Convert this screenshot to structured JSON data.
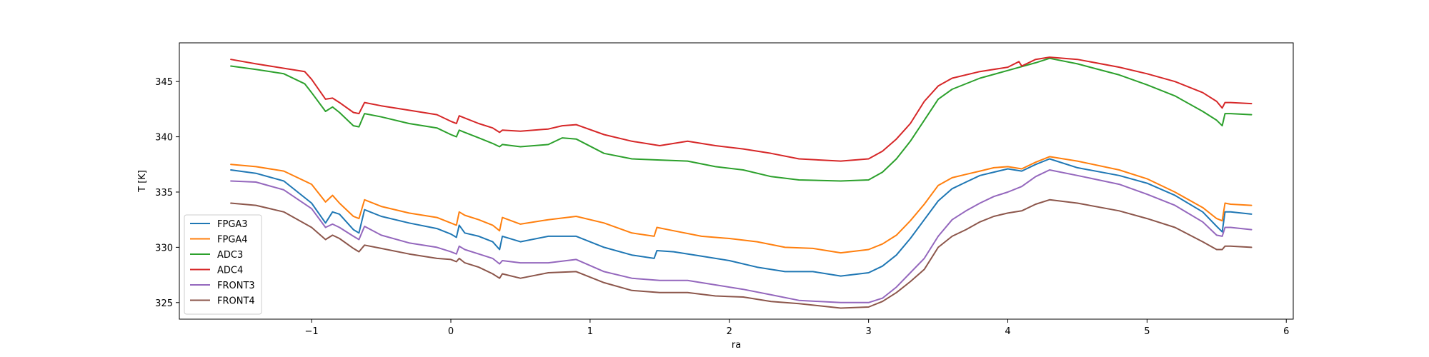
{
  "chart_data": {
    "type": "line",
    "xlabel": "ra",
    "ylabel": "T [K]",
    "xlim": [
      -1.95,
      6.05
    ],
    "ylim": [
      323.5,
      348.5
    ],
    "xticks": [
      -1,
      0,
      1,
      2,
      3,
      4,
      5,
      6
    ],
    "xtick_labels": [
      "−1",
      "0",
      "1",
      "2",
      "3",
      "4",
      "5",
      "6"
    ],
    "yticks": [
      325,
      330,
      335,
      340,
      345
    ],
    "ytick_labels": [
      "325",
      "330",
      "335",
      "340",
      "345"
    ],
    "legend_position": "lower-left",
    "grid": false,
    "series": [
      {
        "name": "FPGA3",
        "color": "#1f77b4",
        "x": [
          -1.58,
          -1.4,
          -1.2,
          -1.0,
          -0.9,
          -0.85,
          -0.8,
          -0.7,
          -0.66,
          -0.62,
          -0.5,
          -0.3,
          -0.1,
          0.0,
          0.04,
          0.06,
          0.1,
          0.2,
          0.3,
          0.35,
          0.37,
          0.5,
          0.7,
          0.9,
          1.1,
          1.3,
          1.46,
          1.48,
          1.6,
          1.8,
          2.0,
          2.2,
          2.4,
          2.6,
          2.8,
          3.0,
          3.1,
          3.2,
          3.3,
          3.4,
          3.5,
          3.6,
          3.7,
          3.8,
          3.9,
          4.0,
          4.1,
          4.2,
          4.3,
          4.5,
          4.8,
          5.0,
          5.2,
          5.4,
          5.5,
          5.54,
          5.56,
          5.6,
          5.75
        ],
        "y": [
          337.0,
          336.7,
          336.0,
          334.0,
          332.2,
          333.2,
          333.0,
          331.6,
          331.3,
          333.4,
          332.8,
          332.2,
          331.7,
          331.2,
          330.9,
          332.0,
          331.3,
          331.0,
          330.5,
          329.8,
          331.0,
          330.5,
          331.0,
          331.0,
          330.0,
          329.3,
          329.0,
          329.7,
          329.6,
          329.2,
          328.8,
          328.2,
          327.8,
          327.8,
          327.4,
          327.7,
          328.3,
          329.3,
          330.8,
          332.5,
          334.2,
          335.3,
          335.9,
          336.5,
          336.8,
          337.1,
          336.9,
          337.5,
          338.0,
          337.2,
          336.5,
          335.8,
          334.7,
          333.2,
          331.9,
          331.4,
          333.2,
          333.2,
          333.0
        ]
      },
      {
        "name": "FPGA4",
        "color": "#ff7f0e",
        "x": [
          -1.58,
          -1.4,
          -1.2,
          -1.0,
          -0.9,
          -0.85,
          -0.8,
          -0.7,
          -0.66,
          -0.62,
          -0.5,
          -0.3,
          -0.1,
          0.0,
          0.04,
          0.06,
          0.1,
          0.2,
          0.3,
          0.35,
          0.37,
          0.5,
          0.7,
          0.9,
          1.1,
          1.3,
          1.46,
          1.48,
          1.6,
          1.8,
          2.0,
          2.2,
          2.4,
          2.6,
          2.8,
          3.0,
          3.1,
          3.2,
          3.3,
          3.4,
          3.5,
          3.6,
          3.7,
          3.8,
          3.9,
          4.0,
          4.1,
          4.2,
          4.3,
          4.5,
          4.8,
          5.0,
          5.2,
          5.4,
          5.5,
          5.54,
          5.56,
          5.6,
          5.75
        ],
        "y": [
          337.5,
          337.3,
          336.9,
          335.7,
          334.1,
          334.7,
          334.0,
          332.8,
          332.6,
          334.3,
          333.7,
          333.1,
          332.7,
          332.2,
          332.0,
          333.2,
          332.9,
          332.5,
          332.0,
          331.5,
          332.7,
          332.1,
          332.5,
          332.8,
          332.2,
          331.3,
          331.0,
          331.8,
          331.5,
          331.0,
          330.8,
          330.5,
          330.0,
          329.9,
          329.5,
          329.8,
          330.3,
          331.1,
          332.4,
          333.9,
          335.6,
          336.3,
          336.6,
          336.9,
          337.2,
          337.3,
          337.1,
          337.7,
          338.2,
          337.8,
          337.0,
          336.2,
          335.0,
          333.6,
          332.6,
          332.4,
          334.0,
          333.9,
          333.8
        ]
      },
      {
        "name": "ADC3",
        "color": "#2ca02c",
        "x": [
          -1.58,
          -1.4,
          -1.2,
          -1.05,
          -1.0,
          -0.9,
          -0.85,
          -0.8,
          -0.7,
          -0.66,
          -0.62,
          -0.5,
          -0.3,
          -0.1,
          0.0,
          0.04,
          0.06,
          0.1,
          0.2,
          0.3,
          0.35,
          0.37,
          0.5,
          0.7,
          0.8,
          0.9,
          1.1,
          1.3,
          1.5,
          1.7,
          1.9,
          2.1,
          2.3,
          2.5,
          2.8,
          3.0,
          3.1,
          3.2,
          3.3,
          3.4,
          3.5,
          3.6,
          3.8,
          4.0,
          4.2,
          4.3,
          4.5,
          4.8,
          5.0,
          5.2,
          5.4,
          5.5,
          5.54,
          5.56,
          5.6,
          5.75
        ],
        "y": [
          346.4,
          346.1,
          345.7,
          344.8,
          344.0,
          342.3,
          342.7,
          342.2,
          341.0,
          340.9,
          342.1,
          341.8,
          341.2,
          340.8,
          340.2,
          340.0,
          340.6,
          340.4,
          339.9,
          339.4,
          339.1,
          339.3,
          339.1,
          339.3,
          339.9,
          339.8,
          338.5,
          338.0,
          337.9,
          337.8,
          337.3,
          337.0,
          336.4,
          336.1,
          336.0,
          336.1,
          336.8,
          338.0,
          339.6,
          341.5,
          343.4,
          344.3,
          345.3,
          346.0,
          346.7,
          347.1,
          346.6,
          345.6,
          344.7,
          343.7,
          342.3,
          341.5,
          341.0,
          342.1,
          342.1,
          342.0
        ]
      },
      {
        "name": "ADC4",
        "color": "#d62728",
        "x": [
          -1.58,
          -1.4,
          -1.2,
          -1.05,
          -1.0,
          -0.9,
          -0.85,
          -0.8,
          -0.7,
          -0.66,
          -0.62,
          -0.5,
          -0.3,
          -0.1,
          0.0,
          0.04,
          0.06,
          0.1,
          0.2,
          0.3,
          0.35,
          0.37,
          0.5,
          0.7,
          0.8,
          0.9,
          1.1,
          1.3,
          1.5,
          1.7,
          1.9,
          2.1,
          2.3,
          2.5,
          2.8,
          3.0,
          3.1,
          3.2,
          3.3,
          3.4,
          3.5,
          3.6,
          3.8,
          4.0,
          4.08,
          4.1,
          4.2,
          4.3,
          4.5,
          4.8,
          5.0,
          5.2,
          5.4,
          5.5,
          5.54,
          5.56,
          5.6,
          5.75
        ],
        "y": [
          347.0,
          346.6,
          346.2,
          345.9,
          345.2,
          343.4,
          343.5,
          343.1,
          342.2,
          342.1,
          343.1,
          342.8,
          342.4,
          342.0,
          341.4,
          341.2,
          341.9,
          341.7,
          341.2,
          340.8,
          340.4,
          340.6,
          340.5,
          340.7,
          341.0,
          341.1,
          340.2,
          339.6,
          339.2,
          339.6,
          339.2,
          338.9,
          338.5,
          338.0,
          337.8,
          338.0,
          338.7,
          339.8,
          341.2,
          343.2,
          344.6,
          345.3,
          345.9,
          346.3,
          346.8,
          346.4,
          347.0,
          347.2,
          347.0,
          346.3,
          345.7,
          345.0,
          344.0,
          343.2,
          342.6,
          343.1,
          343.1,
          343.0
        ]
      },
      {
        "name": "FRONT3",
        "color": "#9467bd",
        "x": [
          -1.58,
          -1.4,
          -1.2,
          -1.0,
          -0.9,
          -0.85,
          -0.8,
          -0.7,
          -0.66,
          -0.62,
          -0.5,
          -0.3,
          -0.1,
          0.0,
          0.04,
          0.06,
          0.1,
          0.2,
          0.3,
          0.35,
          0.37,
          0.5,
          0.7,
          0.9,
          1.1,
          1.3,
          1.5,
          1.7,
          1.9,
          2.1,
          2.3,
          2.5,
          2.8,
          3.0,
          3.1,
          3.2,
          3.3,
          3.4,
          3.5,
          3.6,
          3.7,
          3.8,
          3.9,
          4.0,
          4.1,
          4.2,
          4.3,
          4.5,
          4.8,
          5.0,
          5.2,
          5.4,
          5.5,
          5.54,
          5.56,
          5.6,
          5.75
        ],
        "y": [
          336.0,
          335.9,
          335.2,
          333.5,
          331.8,
          332.1,
          331.8,
          331.0,
          330.7,
          331.9,
          331.1,
          330.4,
          330.0,
          329.6,
          329.4,
          330.1,
          329.8,
          329.4,
          329.0,
          328.5,
          328.8,
          328.6,
          328.6,
          328.9,
          327.8,
          327.2,
          327.0,
          327.0,
          326.6,
          326.2,
          325.7,
          325.2,
          325.0,
          325.0,
          325.4,
          326.4,
          327.7,
          329.0,
          331.0,
          332.5,
          333.3,
          334.0,
          334.6,
          335.0,
          335.5,
          336.4,
          337.0,
          336.5,
          335.7,
          334.8,
          333.8,
          332.3,
          331.1,
          331.0,
          331.8,
          331.8,
          331.6
        ]
      },
      {
        "name": "FRONT4",
        "color": "#8c564b",
        "x": [
          -1.58,
          -1.4,
          -1.2,
          -1.0,
          -0.9,
          -0.85,
          -0.8,
          -0.7,
          -0.66,
          -0.62,
          -0.5,
          -0.3,
          -0.1,
          0.0,
          0.04,
          0.06,
          0.1,
          0.2,
          0.3,
          0.35,
          0.37,
          0.5,
          0.7,
          0.9,
          1.1,
          1.3,
          1.5,
          1.7,
          1.9,
          2.1,
          2.3,
          2.5,
          2.8,
          3.0,
          3.1,
          3.2,
          3.3,
          3.4,
          3.5,
          3.6,
          3.7,
          3.8,
          3.9,
          4.0,
          4.1,
          4.2,
          4.3,
          4.5,
          4.8,
          5.0,
          5.2,
          5.4,
          5.5,
          5.54,
          5.56,
          5.6,
          5.75
        ],
        "y": [
          334.0,
          333.8,
          333.2,
          331.8,
          330.7,
          331.1,
          330.8,
          329.9,
          329.6,
          330.2,
          329.9,
          329.4,
          329.0,
          328.9,
          328.7,
          329.0,
          328.6,
          328.2,
          327.6,
          327.2,
          327.6,
          327.2,
          327.7,
          327.8,
          326.8,
          326.1,
          325.9,
          325.9,
          325.6,
          325.5,
          325.1,
          324.9,
          324.5,
          324.6,
          325.1,
          325.9,
          326.9,
          328.0,
          330.0,
          331.0,
          331.6,
          332.3,
          332.8,
          333.1,
          333.3,
          333.9,
          334.3,
          334.0,
          333.3,
          332.6,
          331.8,
          330.5,
          329.8,
          329.8,
          330.1,
          330.1,
          330.0
        ]
      }
    ]
  }
}
